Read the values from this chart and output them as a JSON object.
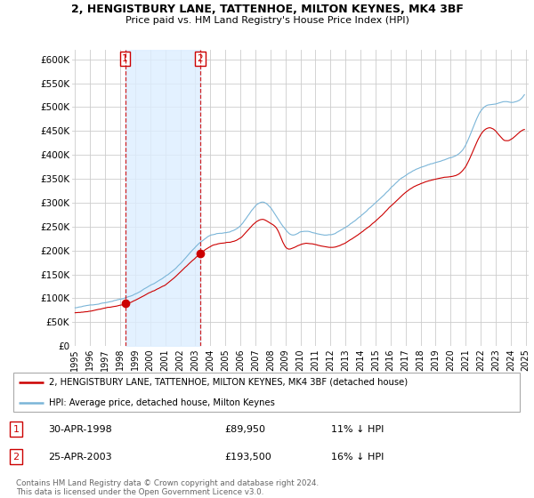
{
  "title": "2, HENGISTBURY LANE, TATTENHOE, MILTON KEYNES, MK4 3BF",
  "subtitle": "Price paid vs. HM Land Registry's House Price Index (HPI)",
  "hpi_label": "HPI: Average price, detached house, Milton Keynes",
  "property_label": "2, HENGISTBURY LANE, TATTENHOE, MILTON KEYNES, MK4 3BF (detached house)",
  "sale1_date": "30-APR-1998",
  "sale1_price": "£89,950",
  "sale1_pct": "11% ↓ HPI",
  "sale2_date": "25-APR-2003",
  "sale2_price": "£193,500",
  "sale2_pct": "16% ↓ HPI",
  "footer": "Contains HM Land Registry data © Crown copyright and database right 2024.\nThis data is licensed under the Open Government Licence v3.0.",
  "hpi_color": "#7ab5d8",
  "property_color": "#cc0000",
  "sale_marker_color": "#cc0000",
  "shade_color": "#ddeeff",
  "background_color": "#ffffff",
  "grid_color": "#cccccc",
  "ylim": [
    0,
    620000
  ],
  "yticks": [
    0,
    50000,
    100000,
    150000,
    200000,
    250000,
    300000,
    350000,
    400000,
    450000,
    500000,
    550000,
    600000
  ],
  "ytick_labels": [
    "£0",
    "£50K",
    "£100K",
    "£150K",
    "£200K",
    "£250K",
    "£300K",
    "£350K",
    "£400K",
    "£450K",
    "£500K",
    "£550K",
    "£600K"
  ],
  "sale1_x": 1998.33,
  "sale1_y": 89950,
  "sale2_x": 2003.32,
  "sale2_y": 193500,
  "xlim_left": 1994.8,
  "xlim_right": 2025.2
}
